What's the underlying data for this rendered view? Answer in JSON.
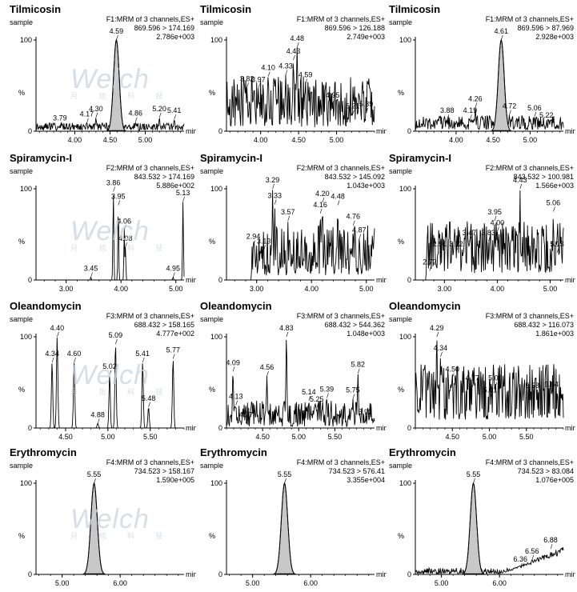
{
  "watermark": {
    "logo": "Welch",
    "sub": "月 旭 科 技"
  },
  "chart_data": [
    {
      "type": "line",
      "compound": "Tilmicosin",
      "sample": "sample",
      "channel": "F1:MRM of 3 channels,ES+",
      "transition": "869.596 > 174.169",
      "intensity": "2.786e+003",
      "ylabel": "%",
      "xlabel": "min",
      "xlim": [
        3.45,
        5.55
      ],
      "ylim": [
        0,
        100
      ],
      "yticks": [
        "0",
        "100"
      ],
      "xticks": [
        "4.00",
        "4.50",
        "5.00"
      ],
      "xtickvals": [
        4.0,
        4.5,
        5.0
      ],
      "shaded_peak": {
        "rt": 4.59,
        "height": 100,
        "width": 0.04
      },
      "peaks": [
        {
          "x": 3.79,
          "y": 5,
          "label": "3.79"
        },
        {
          "x": 4.17,
          "y": 9,
          "label": "4.17"
        },
        {
          "x": 4.3,
          "y": 15,
          "label": "4.30"
        },
        {
          "x": 4.59,
          "y": 100,
          "label": "4.59"
        },
        {
          "x": 4.86,
          "y": 10,
          "label": "4.86"
        },
        {
          "x": 5.2,
          "y": 15,
          "label": "5.20"
        },
        {
          "x": 5.41,
          "y": 13,
          "label": "5.41"
        }
      ],
      "noise": {
        "level": 0.03,
        "amp": 0.06,
        "seed": 11
      },
      "elevated": false
    },
    {
      "type": "line",
      "compound": "Tilmicosin",
      "sample": "sample",
      "channel": "F1:MRM of 3 channels,ES+",
      "transition": "869.596 > 126.188",
      "intensity": "2.749e+003",
      "ylabel": "%",
      "xlabel": "min",
      "xlim": [
        3.55,
        5.5
      ],
      "ylim": [
        0,
        100
      ],
      "yticks": [
        "0",
        "100"
      ],
      "xticks": [
        "4.00",
        "4.50",
        "5.00"
      ],
      "xtickvals": [
        4.0,
        4.5,
        5.0
      ],
      "shaded_peak": null,
      "peaks": [
        {
          "x": 3.82,
          "y": 48,
          "label": "3.82"
        },
        {
          "x": 3.97,
          "y": 47,
          "label": "3.97"
        },
        {
          "x": 4.1,
          "y": 60,
          "label": "4.10"
        },
        {
          "x": 4.33,
          "y": 62,
          "label": "4.33"
        },
        {
          "x": 4.43,
          "y": 78,
          "label": "4.43"
        },
        {
          "x": 4.48,
          "y": 92,
          "label": "4.48"
        },
        {
          "x": 4.59,
          "y": 52,
          "label": "4.59"
        },
        {
          "x": 4.95,
          "y": 30,
          "label": "4.95"
        },
        {
          "x": 5.21,
          "y": 18,
          "label": "5.21"
        },
        {
          "x": 5.39,
          "y": 20,
          "label": "5.39"
        }
      ],
      "noise": {
        "level": 0.15,
        "amp": 0.45,
        "seed": 21
      },
      "elevated": false
    },
    {
      "type": "line",
      "compound": "Tilmicosin",
      "sample": "sample",
      "channel": "F1:MRM of 3 channels,ES+",
      "transition": "869.596 > 87.969",
      "intensity": "2.928e+003",
      "ylabel": "%",
      "xlabel": "min",
      "xlim": [
        3.45,
        5.45
      ],
      "ylim": [
        0,
        100
      ],
      "yticks": [
        "0",
        "100"
      ],
      "xticks": [
        "4.00",
        "4.50",
        "5.00"
      ],
      "xtickvals": [
        4.0,
        4.5,
        5.0
      ],
      "shaded_peak": {
        "rt": 4.61,
        "height": 100,
        "width": 0.04
      },
      "peaks": [
        {
          "x": 3.88,
          "y": 13,
          "label": "3.88"
        },
        {
          "x": 4.19,
          "y": 13,
          "label": "4.19"
        },
        {
          "x": 4.26,
          "y": 26,
          "label": "4.26"
        },
        {
          "x": 4.61,
          "y": 100,
          "label": "4.61"
        },
        {
          "x": 4.72,
          "y": 18,
          "label": "4.72"
        },
        {
          "x": 5.06,
          "y": 16,
          "label": "5.06"
        },
        {
          "x": 5.22,
          "y": 8,
          "label": "5.22"
        }
      ],
      "noise": {
        "level": 0.05,
        "amp": 0.12,
        "seed": 31
      },
      "elevated": false
    },
    {
      "type": "line",
      "compound": "Spiramycin-I",
      "sample": "sample",
      "channel": "F2:MRM of 3 channels,ES+",
      "transition": "843.532 > 174.169",
      "intensity": "5.886e+002",
      "ylabel": "%",
      "xlabel": "min",
      "xlim": [
        2.45,
        5.15
      ],
      "ylim": [
        0,
        100
      ],
      "yticks": [
        "0",
        "100"
      ],
      "xticks": [
        "3.00",
        "4.00",
        "5.00"
      ],
      "xtickvals": [
        3.0,
        4.0,
        5.0
      ],
      "shaded_peak": null,
      "peaks": [
        {
          "x": 3.45,
          "y": 3,
          "label": "3.45"
        },
        {
          "x": 3.86,
          "y": 97,
          "label": "3.86"
        },
        {
          "x": 3.95,
          "y": 82,
          "label": "3.95"
        },
        {
          "x": 4.06,
          "y": 55,
          "label": "4.06"
        },
        {
          "x": 4.08,
          "y": 36,
          "label": "4.08"
        },
        {
          "x": 4.95,
          "y": 3,
          "label": "4.95"
        },
        {
          "x": 5.13,
          "y": 86,
          "label": "5.13"
        }
      ],
      "noise": {
        "level": 0.0,
        "amp": 0.0,
        "seed": 41
      },
      "elevated": false
    },
    {
      "type": "line",
      "compound": "Spiramycin-I",
      "sample": "sample",
      "channel": "F2:MRM of 3 channels,ES+",
      "transition": "843.532 > 145.092",
      "intensity": "1.043e+003",
      "ylabel": "%",
      "xlabel": "min",
      "xlim": [
        2.45,
        5.15
      ],
      "ylim": [
        0,
        100
      ],
      "yticks": [
        "0",
        "100"
      ],
      "xticks": [
        "3.00",
        "4.00",
        "5.00"
      ],
      "xtickvals": [
        3.0,
        4.0,
        5.0
      ],
      "shaded_peak": null,
      "peaks": [
        {
          "x": 2.94,
          "y": 38,
          "label": "2.94"
        },
        {
          "x": 3.13,
          "y": 33,
          "label": "3.13"
        },
        {
          "x": 3.29,
          "y": 100,
          "label": "3.29"
        },
        {
          "x": 3.33,
          "y": 83,
          "label": "3.33"
        },
        {
          "x": 3.57,
          "y": 65,
          "label": "3.57"
        },
        {
          "x": 4.16,
          "y": 73,
          "label": "4.16"
        },
        {
          "x": 4.2,
          "y": 85,
          "label": "4.20"
        },
        {
          "x": 4.48,
          "y": 82,
          "label": "4.48"
        },
        {
          "x": 4.76,
          "y": 60,
          "label": "4.76"
        },
        {
          "x": 4.87,
          "y": 45,
          "label": "4.87"
        }
      ],
      "noise": {
        "level": 0.1,
        "amp": 0.5,
        "seed": 51,
        "start": 2.9
      },
      "elevated": false
    },
    {
      "type": "line",
      "compound": "Spiramycin-I",
      "sample": "sample",
      "channel": "F2:MRM of 3 channels,ES+",
      "transition": "843.532 > 100.981",
      "intensity": "1.566e+003",
      "ylabel": "%",
      "xlabel": "min",
      "xlim": [
        2.45,
        5.25
      ],
      "ylim": [
        0,
        100
      ],
      "yticks": [
        "0",
        "100"
      ],
      "xticks": [
        "3.00",
        "4.00",
        "5.00"
      ],
      "xtickvals": [
        3.0,
        4.0,
        5.0
      ],
      "shaded_peak": null,
      "peaks": [
        {
          "x": 2.72,
          "y": 10,
          "label": "2.72"
        },
        {
          "x": 2.91,
          "y": 30,
          "label": "2.91"
        },
        {
          "x": 3.22,
          "y": 30,
          "label": "3.22"
        },
        {
          "x": 3.47,
          "y": 42,
          "label": "3.47"
        },
        {
          "x": 3.83,
          "y": 42,
          "label": "3.83"
        },
        {
          "x": 3.95,
          "y": 65,
          "label": "3.95"
        },
        {
          "x": 4.0,
          "y": 53,
          "label": "4.00"
        },
        {
          "x": 4.43,
          "y": 100,
          "label": "4.43"
        },
        {
          "x": 5.06,
          "y": 75,
          "label": "5.06"
        },
        {
          "x": 5.13,
          "y": 30,
          "label": "5.13"
        }
      ],
      "noise": {
        "level": 0.25,
        "amp": 0.4,
        "seed": 61,
        "start": 2.65
      },
      "elevated": false
    },
    {
      "type": "line",
      "compound": "Oleandomycin",
      "sample": "sample",
      "channel": "F3:MRM of 3 channels,ES+",
      "transition": "688.432 > 158.165",
      "intensity": "4.777e+002",
      "ylabel": "%",
      "xlabel": "min",
      "xlim": [
        4.15,
        5.9
      ],
      "ylim": [
        0,
        100
      ],
      "yticks": [
        "0",
        "100"
      ],
      "xticks": [
        "4.50",
        "5.00",
        "5.50"
      ],
      "xtickvals": [
        4.5,
        5.0,
        5.5
      ],
      "shaded_peak": null,
      "peaks": [
        {
          "x": 4.34,
          "y": 72,
          "label": "4.34"
        },
        {
          "x": 4.4,
          "y": 100,
          "label": "4.40"
        },
        {
          "x": 4.6,
          "y": 72,
          "label": "4.60"
        },
        {
          "x": 4.88,
          "y": 5,
          "label": "4.88"
        },
        {
          "x": 5.02,
          "y": 58,
          "label": "5.02"
        },
        {
          "x": 5.09,
          "y": 92,
          "label": "5.09"
        },
        {
          "x": 5.41,
          "y": 72,
          "label": "5.41"
        },
        {
          "x": 5.48,
          "y": 23,
          "label": "5.48"
        },
        {
          "x": 5.77,
          "y": 76,
          "label": "5.77"
        }
      ],
      "noise": {
        "level": 0.0,
        "amp": 0.0,
        "seed": 71
      },
      "elevated": false
    },
    {
      "type": "line",
      "compound": "Oleandomycin",
      "sample": "sample",
      "channel": "F3:MRM of 3 channels,ES+",
      "transition": "688.432 > 544.362",
      "intensity": "1.048e+003",
      "ylabel": "%",
      "xlabel": "min",
      "xlim": [
        4.0,
        6.05
      ],
      "ylim": [
        0,
        100
      ],
      "yticks": [
        "0",
        "100"
      ],
      "xticks": [
        "4.50",
        "5.00",
        "5.50"
      ],
      "xtickvals": [
        4.5,
        5.0,
        5.5
      ],
      "shaded_peak": null,
      "peaks": [
        {
          "x": 4.09,
          "y": 62,
          "label": "4.09"
        },
        {
          "x": 4.13,
          "y": 25,
          "label": "4.13"
        },
        {
          "x": 4.27,
          "y": 5,
          "label": "4.27"
        },
        {
          "x": 4.56,
          "y": 57,
          "label": "4.56"
        },
        {
          "x": 4.83,
          "y": 100,
          "label": "4.83"
        },
        {
          "x": 5.14,
          "y": 30,
          "label": "5.14"
        },
        {
          "x": 5.25,
          "y": 22,
          "label": "5.25"
        },
        {
          "x": 5.39,
          "y": 33,
          "label": "5.39"
        },
        {
          "x": 5.75,
          "y": 32,
          "label": "5.75"
        },
        {
          "x": 5.82,
          "y": 60,
          "label": "5.82"
        },
        {
          "x": 5.92,
          "y": 8,
          "label": "5.92"
        }
      ],
      "noise": {
        "level": 0.05,
        "amp": 0.25,
        "seed": 81
      },
      "elevated": false
    },
    {
      "type": "line",
      "compound": "Oleandomycin",
      "sample": "sample",
      "channel": "F3:MRM of 3 channels,ES+",
      "transition": "688.432 > 116.073",
      "intensity": "1.861e+003",
      "ylabel": "%",
      "xlabel": "min",
      "xlim": [
        4.0,
        6.0
      ],
      "ylim": [
        0,
        100
      ],
      "yticks": [
        "0",
        "100"
      ],
      "xticks": [
        "4.50",
        "5.00",
        "5.50"
      ],
      "xtickvals": [
        4.5,
        5.0,
        5.5
      ],
      "shaded_peak": null,
      "peaks": [
        {
          "x": 4.29,
          "y": 100,
          "label": "4.29"
        },
        {
          "x": 4.34,
          "y": 78,
          "label": "4.34"
        },
        {
          "x": 4.5,
          "y": 55,
          "label": "4.50"
        },
        {
          "x": 4.77,
          "y": 45,
          "label": "4.77"
        },
        {
          "x": 5.01,
          "y": 32,
          "label": "5.01"
        },
        {
          "x": 5.08,
          "y": 45,
          "label": "5.08"
        },
        {
          "x": 5.58,
          "y": 37,
          "label": "5.58"
        },
        {
          "x": 5.84,
          "y": 38,
          "label": "5.84"
        }
      ],
      "noise": {
        "level": 0.3,
        "amp": 0.4,
        "seed": 91
      },
      "elevated": false
    },
    {
      "type": "line",
      "compound": "Erythromycin",
      "sample": "sample",
      "channel": "F4:MRM of 3 channels,ES+",
      "transition": "734.523 > 158.167",
      "intensity": "1.590e+005",
      "ylabel": "%",
      "xlabel": "min",
      "xlim": [
        4.55,
        7.1
      ],
      "ylim": [
        0,
        100
      ],
      "yticks": [
        "0",
        "100"
      ],
      "xticks": [
        "5.00",
        "6.00"
      ],
      "xtickvals": [
        5.0,
        6.0
      ],
      "shaded_peak": {
        "rt": 5.55,
        "height": 100,
        "width": 0.055
      },
      "peaks": [
        {
          "x": 5.55,
          "y": 100,
          "label": "5.55"
        }
      ],
      "noise": {
        "level": 0.0,
        "amp": 0.0,
        "seed": 101
      },
      "elevated": false
    },
    {
      "type": "line",
      "compound": "Erythromycin",
      "sample": "sample",
      "channel": "F4:MRM of 3 channels,ES+",
      "transition": "734.523 > 576.41",
      "intensity": "3.355e+004",
      "ylabel": "%",
      "xlabel": "min",
      "xlim": [
        4.55,
        7.1
      ],
      "ylim": [
        0,
        100
      ],
      "yticks": [
        "0",
        "100"
      ],
      "xticks": [
        "5.00",
        "6.00"
      ],
      "xtickvals": [
        5.0,
        6.0
      ],
      "shaded_peak": {
        "rt": 5.55,
        "height": 100,
        "width": 0.055
      },
      "peaks": [
        {
          "x": 5.55,
          "y": 100,
          "label": "5.55"
        }
      ],
      "noise": {
        "level": 0.0,
        "amp": 0.0,
        "seed": 111
      },
      "elevated": false
    },
    {
      "type": "line",
      "compound": "Erythromycin",
      "sample": "sample",
      "channel": "F4:MRM of 3 channels,ES+",
      "transition": "734.523 > 83.084",
      "intensity": "1.076e+005",
      "ylabel": "%",
      "xlabel": "min",
      "xlim": [
        4.55,
        7.1
      ],
      "ylim": [
        0,
        100
      ],
      "yticks": [
        "0",
        "100"
      ],
      "xticks": [
        "5.00",
        "6.00"
      ],
      "xtickvals": [
        5.0,
        6.0
      ],
      "shaded_peak": {
        "rt": 5.55,
        "height": 100,
        "width": 0.055
      },
      "peaks": [
        {
          "x": 5.55,
          "y": 100,
          "label": "5.55"
        },
        {
          "x": 6.36,
          "y": 7,
          "label": "6.36"
        },
        {
          "x": 6.56,
          "y": 16,
          "label": "6.56"
        },
        {
          "x": 6.88,
          "y": 28,
          "label": "6.88"
        }
      ],
      "noise": {
        "level": 0.02,
        "amp": 0.05,
        "seed": 121
      },
      "elevated": true
    }
  ]
}
